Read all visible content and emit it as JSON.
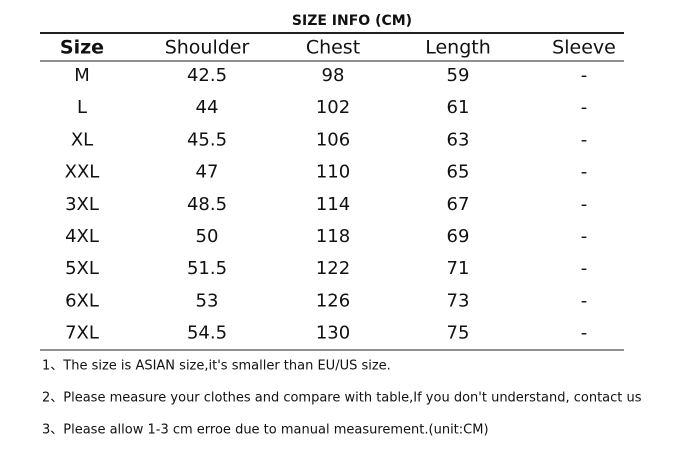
{
  "title": "SIZE INFO (CM)",
  "table": {
    "columns": [
      "Size",
      "Shoulder",
      "Chest",
      "Length",
      "Sleeve"
    ],
    "rows": [
      [
        "M",
        "42.5",
        "98",
        "59",
        "-"
      ],
      [
        "L",
        "44",
        "102",
        "61",
        "-"
      ],
      [
        "XL",
        "45.5",
        "106",
        "63",
        "-"
      ],
      [
        "XXL",
        "47",
        "110",
        "65",
        "-"
      ],
      [
        "3XL",
        "48.5",
        "114",
        "67",
        "-"
      ],
      [
        "4XL",
        "50",
        "118",
        "69",
        "-"
      ],
      [
        "5XL",
        "51.5",
        "122",
        "71",
        "-"
      ],
      [
        "6XL",
        "53",
        "126",
        "73",
        "-"
      ],
      [
        "7XL",
        "54.5",
        "130",
        "75",
        "-"
      ]
    ]
  },
  "notes": [
    "1、The size is ASIAN size,it's smaller than EU/US size.",
    "2、Please measure your clothes and compare with table,If you don't understand, contact us",
    "3、Please allow 1-3 cm erroe due to manual measurement.(unit:CM)"
  ]
}
